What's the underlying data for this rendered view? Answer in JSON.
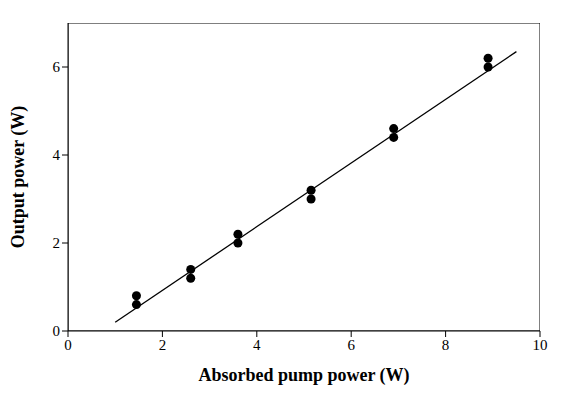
{
  "chart_data": {
    "type": "scatter",
    "xlabel": "Absorbed pump power (W)",
    "ylabel": "Output power (W)",
    "xlim": [
      0,
      10
    ],
    "xticks": [
      0,
      2,
      4,
      6,
      8,
      10
    ],
    "ylim": [
      0,
      7
    ],
    "yticks": [
      0,
      2,
      4,
      6
    ],
    "grid": false,
    "series": [
      {
        "type": "scatter",
        "color": "#000000",
        "marker": "circle",
        "x": [
          1.45,
          1.45,
          2.6,
          2.6,
          3.6,
          3.6,
          5.15,
          5.15,
          6.9,
          6.9,
          8.9,
          8.9
        ],
        "values": [
          0.8,
          0.6,
          1.4,
          1.2,
          2.2,
          2.0,
          3.2,
          3.0,
          4.6,
          4.4,
          6.2,
          6.0
        ]
      },
      {
        "type": "line",
        "color": "#000000",
        "line_style": "solid",
        "x": [
          1,
          9.5
        ],
        "values": [
          0.2,
          6.35
        ]
      }
    ]
  }
}
